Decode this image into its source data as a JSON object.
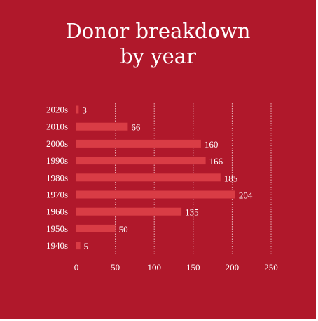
{
  "chart_data": {
    "type": "bar",
    "orientation": "horizontal",
    "title": [
      "Donor breakdown",
      "by year"
    ],
    "categories": [
      "2020s",
      "2010s",
      "2000s",
      "1990s",
      "1980s",
      "1970s",
      "1960s",
      "1950s",
      "1940s"
    ],
    "values": [
      3,
      66,
      160,
      166,
      185,
      204,
      135,
      50,
      5
    ],
    "xlim": [
      0,
      250
    ],
    "xticks": [
      0,
      50,
      100,
      150,
      200,
      250
    ],
    "xlabel": "",
    "ylabel": "",
    "grid": "vertical-dotted",
    "colors": {
      "background": "#b0182b",
      "bar": "#d93c45",
      "text": "#ffffff",
      "grid": "#e9b4b9"
    }
  }
}
